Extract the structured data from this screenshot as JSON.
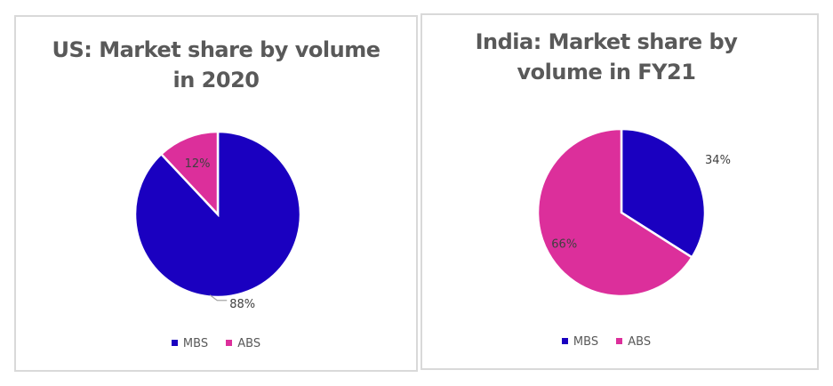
{
  "colors": {
    "MBS": "#1a00c0",
    "ABS": "#dc2f9b"
  },
  "chart_data": [
    {
      "type": "pie",
      "title": "US: Market share by volume in 2020",
      "title_lines": [
        "US: Market share by volume",
        "in 2020"
      ],
      "categories": [
        "MBS",
        "ABS"
      ],
      "values": [
        88,
        12
      ],
      "labels": [
        "88%",
        "12%"
      ],
      "legend": [
        "MBS",
        "ABS"
      ],
      "legend_position": "bottom"
    },
    {
      "type": "pie",
      "title": "India: Market share by volume in FY21",
      "title_lines": [
        "India: Market share by",
        "volume in FY21"
      ],
      "categories": [
        "MBS",
        "ABS"
      ],
      "values": [
        34,
        66
      ],
      "labels": [
        "34%",
        "66%"
      ],
      "legend": [
        "MBS",
        "ABS"
      ],
      "legend_position": "bottom"
    }
  ]
}
